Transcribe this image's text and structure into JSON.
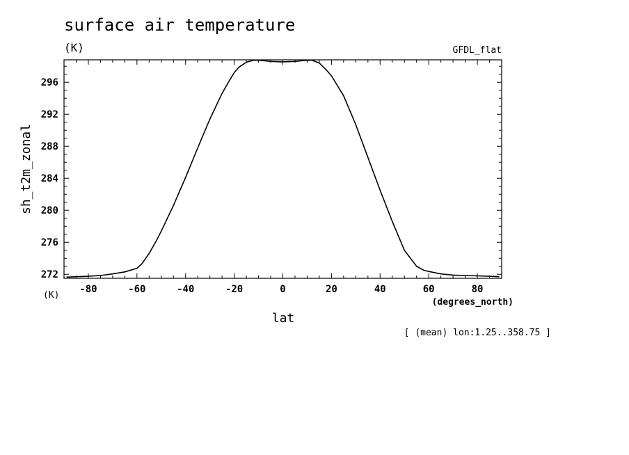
{
  "chart_data": {
    "type": "line",
    "title": "surface air temperature",
    "title_unit": "(K)",
    "model_label": "GFDL_flat",
    "ylabel": "sh_t2m_zonal",
    "y_unit_label": "(K)",
    "xlabel": "lat",
    "x_unit_label": "(degrees_north)",
    "footnote": "[ (mean) lon:1.25..358.75 ]",
    "xlim": [
      -90,
      90
    ],
    "ylim": [
      271.5,
      298.8
    ],
    "xticks": [
      -80,
      -60,
      -40,
      -20,
      0,
      20,
      40,
      60,
      80
    ],
    "xtick_labels": [
      "-80",
      "-60",
      "-40",
      "-20",
      "0",
      "20",
      "40",
      "60",
      "80"
    ],
    "yticks": [
      272,
      276,
      280,
      284,
      288,
      292,
      296
    ],
    "ytick_labels": [
      "272",
      "276",
      "280",
      "284",
      "288",
      "292",
      "296"
    ],
    "series": [
      {
        "x": [
          -89,
          -85,
          -80,
          -75,
          -70,
          -65,
          -60,
          -58,
          -55,
          -52,
          -50,
          -45,
          -40,
          -35,
          -30,
          -25,
          -22,
          -20,
          -18,
          -15,
          -12,
          -10,
          -8,
          -5,
          0,
          5,
          8,
          10,
          12,
          15,
          18,
          20,
          22,
          25,
          30,
          35,
          40,
          45,
          50,
          55,
          58,
          60,
          65,
          70,
          75,
          80,
          85,
          89
        ],
        "y": [
          271.65,
          271.7,
          271.75,
          271.85,
          272.05,
          272.3,
          272.75,
          273.3,
          274.6,
          276.2,
          277.4,
          280.6,
          284.1,
          287.8,
          291.4,
          294.6,
          296.2,
          297.2,
          297.9,
          298.5,
          298.75,
          298.75,
          298.7,
          298.6,
          298.55,
          298.6,
          298.7,
          298.75,
          298.75,
          298.4,
          297.5,
          296.8,
          295.8,
          294.3,
          290.7,
          286.6,
          282.5,
          278.6,
          275.0,
          273.0,
          272.5,
          272.35,
          272.05,
          271.9,
          271.85,
          271.8,
          271.75,
          271.7
        ]
      }
    ]
  }
}
